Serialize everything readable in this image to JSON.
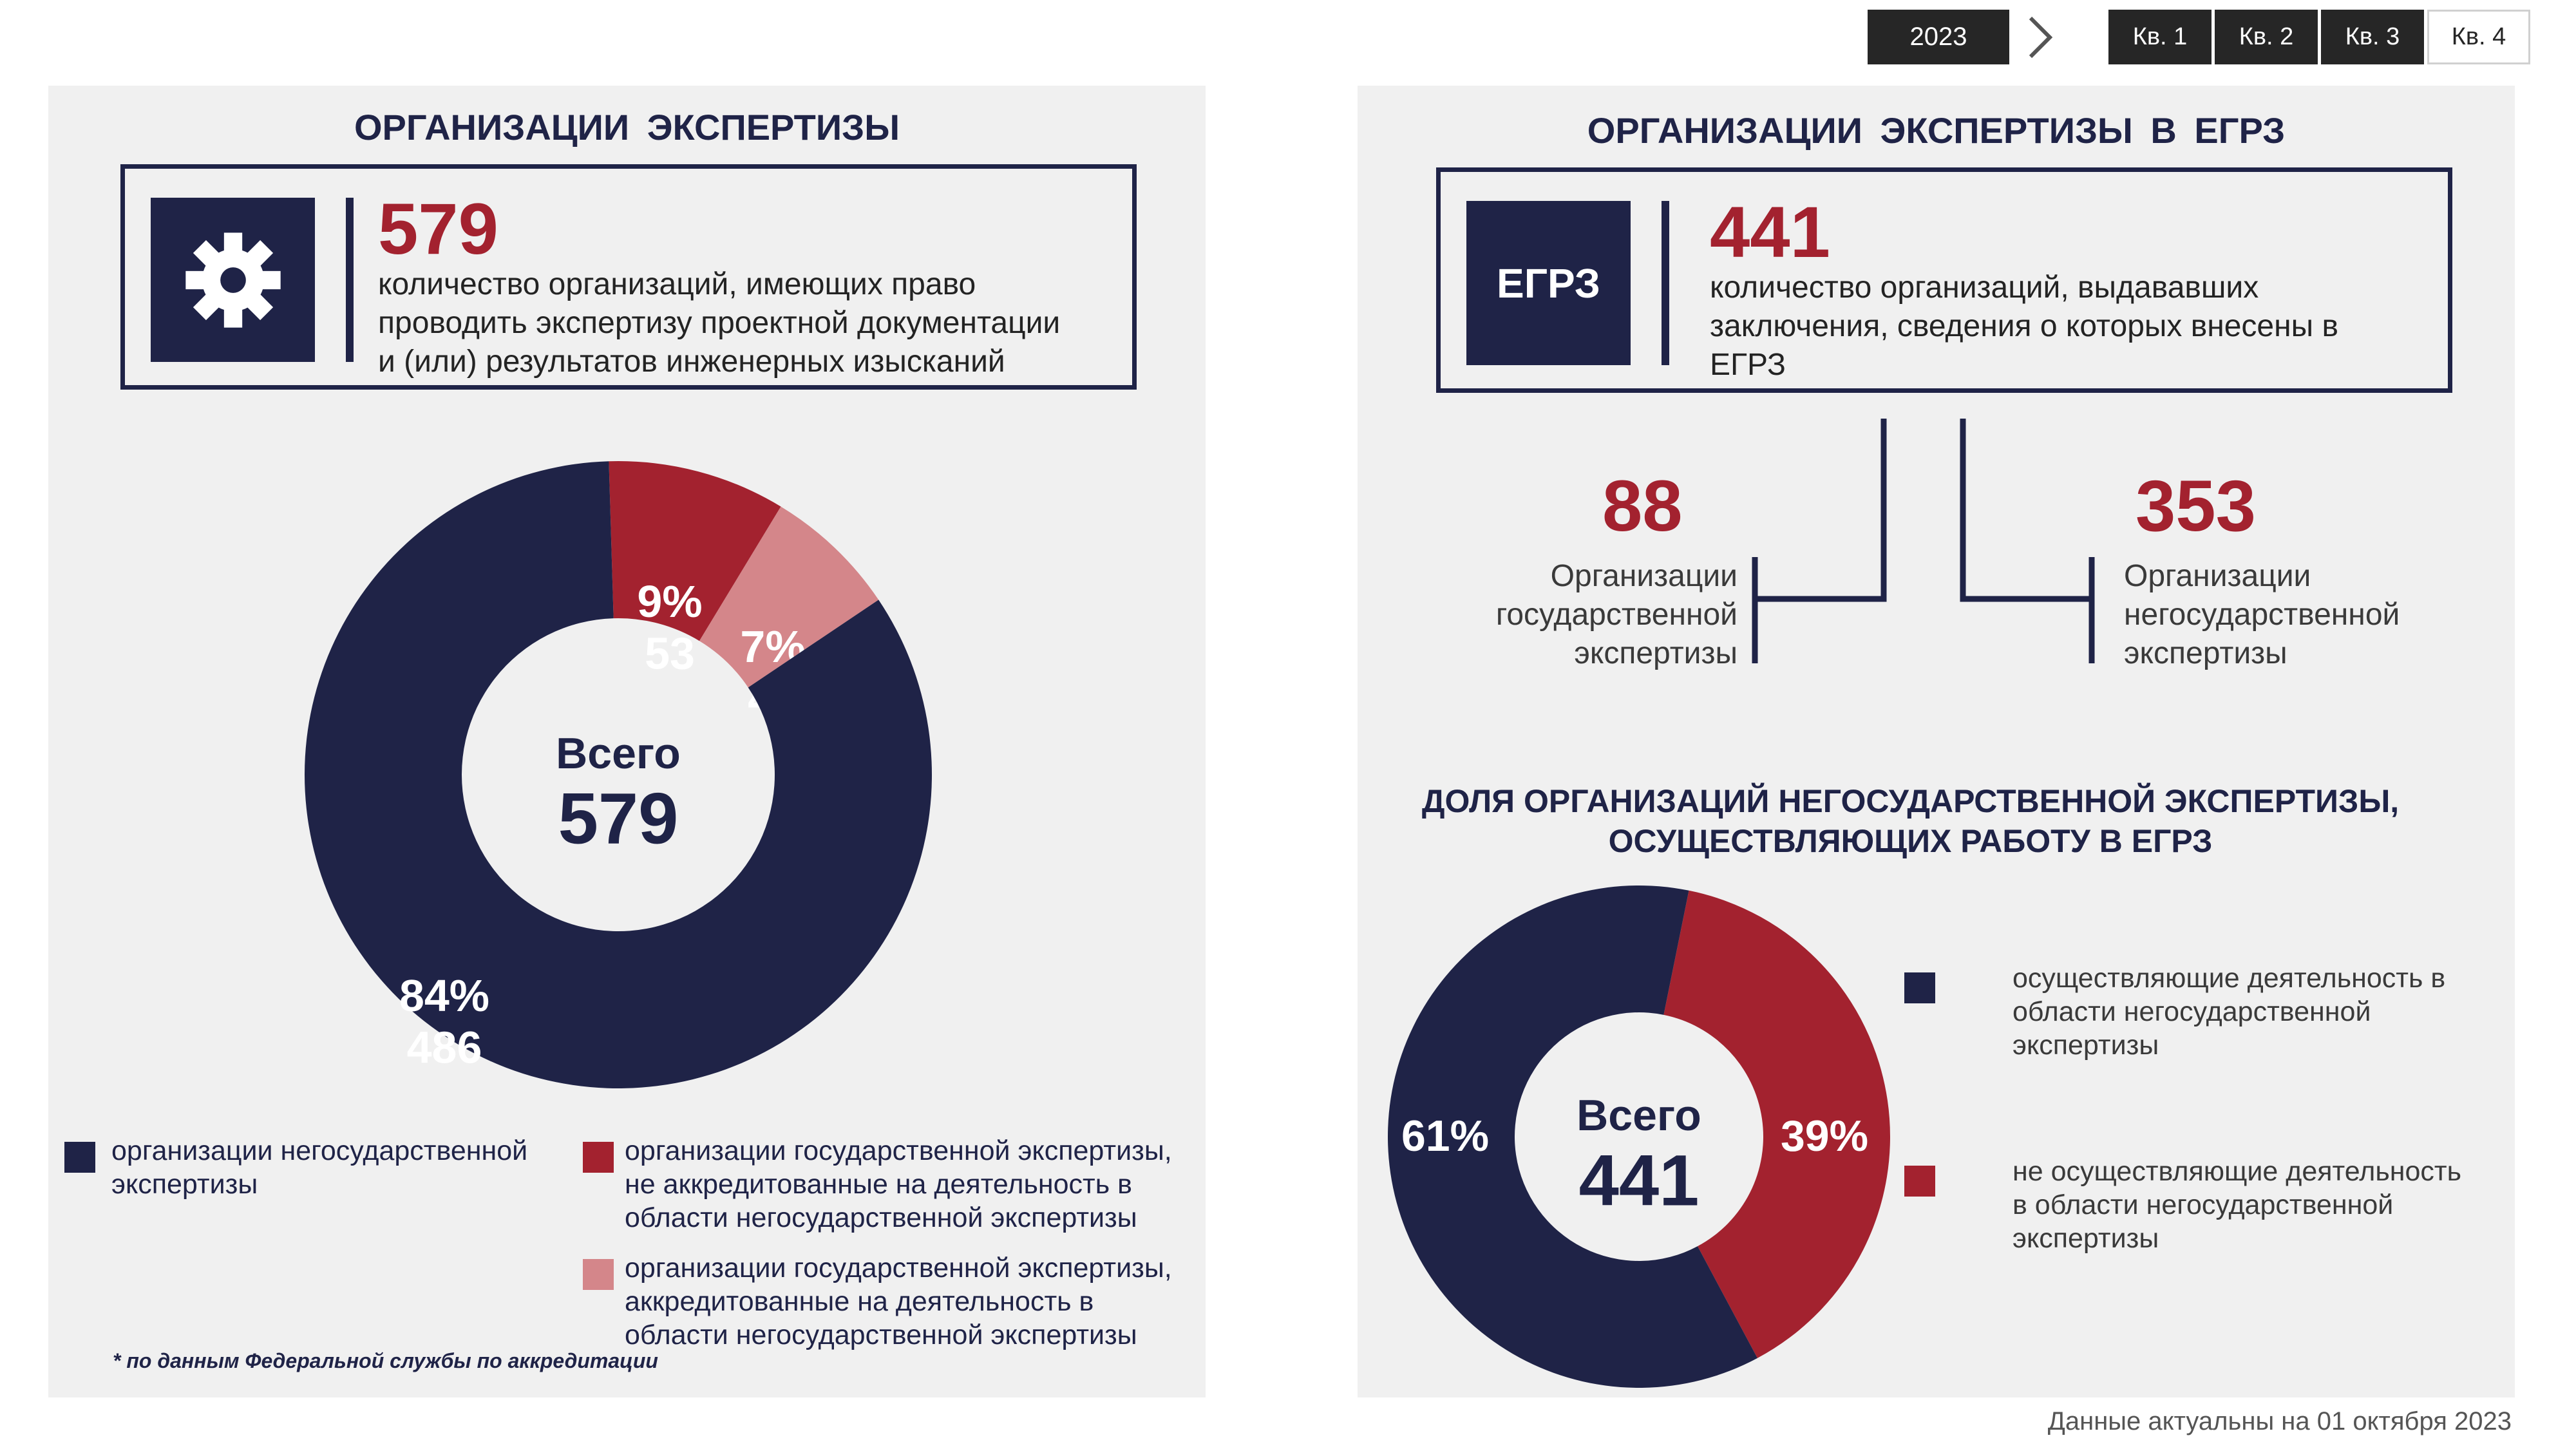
{
  "nav": {
    "year": "2023",
    "quarters": [
      {
        "label": "Кв. 1",
        "active": true
      },
      {
        "label": "Кв. 2",
        "active": true
      },
      {
        "label": "Кв. 3",
        "active": true
      },
      {
        "label": "Кв. 4",
        "active": false
      }
    ]
  },
  "left": {
    "title": "ОРГАНИЗАЦИИ ЭКСПЕРТИЗЫ",
    "icon": "gear-icon",
    "big_number": "579",
    "desc_lines": [
      "количество организаций, имеющих право",
      "проводить экспертизу проектной документации",
      "и (или) результатов инженерных изысканий"
    ],
    "legend": [
      {
        "text": "организации негосударственной экспертизы",
        "color": "#1f2347"
      },
      {
        "text": "организации государственной экспертизы, не аккредитованные на деятельность в области негосударственной экспертизы",
        "color": "#a3222f"
      },
      {
        "text": "организации государственной экспертизы, аккредитованные на деятельность в области негосударственной экспертизы",
        "color": "#d4868a"
      }
    ],
    "footnote": "* по данным Федеральной службы по аккредитации"
  },
  "right": {
    "title": "ОРГАНИЗАЦИИ ЭКСПЕРТИЗЫ В ЕГРЗ",
    "icon_label": "ЕГРЗ",
    "big_number": "441",
    "desc_lines": [
      "количество организаций, выдававших",
      "заключения, сведения о которых внесены в",
      "ЕГРЗ"
    ],
    "sub_left": {
      "number": "88",
      "lines": [
        "Организации",
        "государственной",
        "экспертизы"
      ]
    },
    "sub_right": {
      "number": "353",
      "lines": [
        "Организации",
        "негосударственной",
        "экспертизы"
      ]
    },
    "chart_title_lines": [
      "ДОЛЯ ОРГАНИЗАЦИЙ НЕГОСУДАРСТВЕННОЙ ЭКСПЕРТИЗЫ,",
      "ОСУЩЕСТВЛЯЮЩИХ РАБОТУ В ЕГРЗ"
    ],
    "legend": [
      {
        "text": "осуществляющие деятельность в области негосударственной экспертизы",
        "color": "#1f2347"
      },
      {
        "text": "не осуществляющие деятельность в области негосударственной экспертизы",
        "color": "#a3222f"
      }
    ]
  },
  "as_of": "Данные актуальны на  01 октября 2023",
  "chart_data": [
    {
      "type": "pie",
      "center_label": "Всего",
      "center_value": "579",
      "slices": [
        {
          "name": "организации государственной экспертизы, не аккредитованные на деятельность в области негосударственной экспертизы",
          "value": 53,
          "percent_label": "9%",
          "color": "#a3222f"
        },
        {
          "name": "организации государственной экспертизы, аккредитованные на деятельность в области негосударственной экспертизы",
          "value": 40,
          "percent_label": "7%",
          "color": "#d4868a"
        },
        {
          "name": "организации негосударственной экспертизы",
          "value": 486,
          "percent_label": "84%",
          "color": "#1f2347"
        }
      ]
    },
    {
      "type": "pie",
      "title": "ДОЛЯ ОРГАНИЗАЦИЙ НЕГОСУДАРСТВЕННОЙ ЭКСПЕРТИЗЫ, ОСУЩЕСТВЛЯЮЩИХ РАБОТУ В ЕГРЗ",
      "center_label": "Всего",
      "center_value": "441",
      "slices": [
        {
          "name": "не осуществляющие деятельность в области негосударственной экспертизы",
          "value": 39,
          "percent_label": "39%",
          "color": "#a3222f"
        },
        {
          "name": "осуществляющие деятельность в области негосударственной экспертизы",
          "value": 61,
          "percent_label": "61%",
          "color": "#1f2347"
        }
      ]
    }
  ]
}
